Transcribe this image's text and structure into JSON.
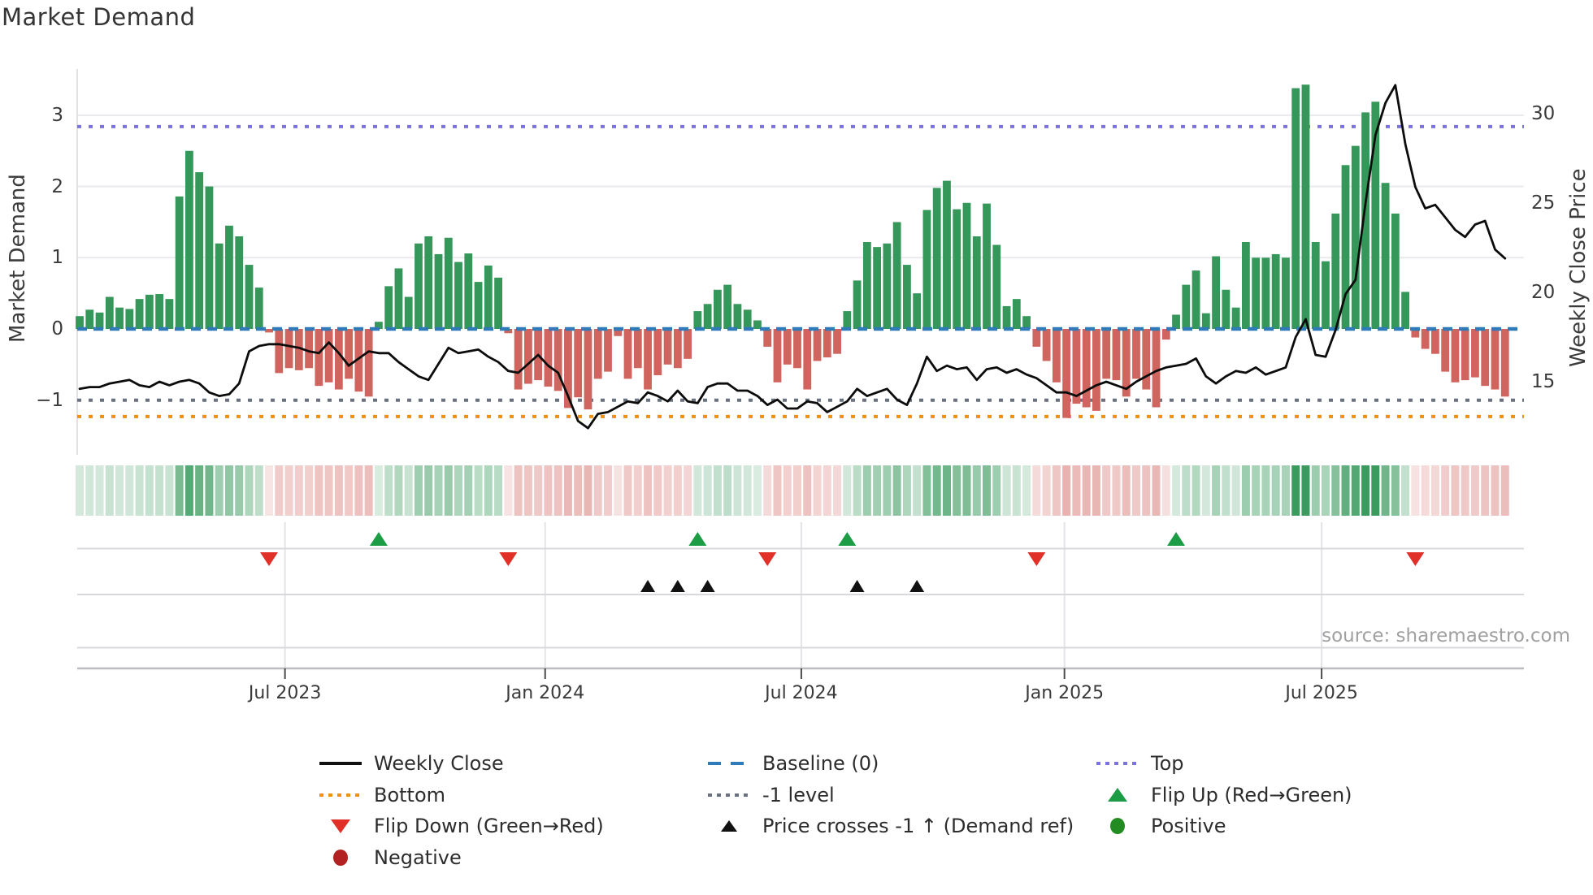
{
  "title": "Market Demand",
  "source": "source: sharemaestro.com",
  "axes": {
    "left_label": "Market Demand",
    "right_label": "Weekly Close Price",
    "left_ticks": [
      "3",
      "2",
      "1",
      "0",
      "−1"
    ],
    "left_tick_values": [
      3,
      2,
      1,
      0,
      -1
    ],
    "right_ticks": [
      "30",
      "25",
      "20",
      "15"
    ],
    "right_tick_values": [
      30,
      25,
      20,
      15
    ],
    "x_ticks": [
      "Jul 2023",
      "Jan 2024",
      "Jul 2024",
      "Jan 2025",
      "Jul 2025"
    ],
    "x_tick_weeks": [
      20.6,
      46.7,
      72.4,
      98.8,
      124.6
    ]
  },
  "colors": {
    "positive_bar": "#35985a",
    "negative_bar": "#cf655e",
    "price_line": "#0c0c0c",
    "baseline": "#2f7ab8",
    "top_line": "#7b72dc",
    "minus1_line": "#6a7280",
    "bottom_line": "#f0920f",
    "flip_up": "#1b9c45",
    "flip_down": "#e03028",
    "price_cross": "#111111",
    "positive_dot": "#228b22",
    "negative_dot": "#b22222",
    "heat_green": "53,152,90",
    "heat_red": "207,101,95"
  },
  "chart_data": {
    "type": "bar+line",
    "title": "Market Demand",
    "x_unit": "weekly (Feb 2023 – Nov 2025)",
    "xlabel_ticks": [
      "Jul 2023",
      "Jan 2024",
      "Jul 2024",
      "Jan 2025",
      "Jul 2025"
    ],
    "ylabel_left": "Market Demand",
    "ylabel_right": "Weekly Close Price",
    "ylim_demand": [
      -1.77,
      3.65
    ],
    "ylim_price": [
      10.9,
      32.5
    ],
    "grid": "horizontal at demand 1,2,3; vertical in marker panel at half-year ticks",
    "legend_position": "below chart, 3 columns",
    "reference_lines": {
      "baseline": 0,
      "top": 2.84,
      "minus_one": -1,
      "bottom": -1.23
    },
    "series": [
      {
        "name": "Market Demand (bars)",
        "values": [
          0.18,
          0.27,
          0.23,
          0.45,
          0.3,
          0.28,
          0.42,
          0.48,
          0.49,
          0.42,
          1.86,
          2.5,
          2.2,
          2.0,
          1.2,
          1.45,
          1.3,
          0.9,
          0.58,
          -0.05,
          -0.62,
          -0.55,
          -0.58,
          -0.55,
          -0.8,
          -0.75,
          -0.85,
          -0.7,
          -0.88,
          -0.95,
          0.1,
          0.6,
          0.85,
          0.45,
          1.2,
          1.3,
          1.05,
          1.28,
          0.94,
          1.06,
          0.66,
          0.89,
          0.72,
          -0.06,
          -0.85,
          -0.77,
          -0.72,
          -0.81,
          -0.87,
          -1.11,
          -0.96,
          -1.13,
          -0.7,
          -0.6,
          -0.1,
          -0.7,
          -0.55,
          -0.85,
          -0.65,
          -0.5,
          -0.55,
          -0.42,
          0.25,
          0.35,
          0.55,
          0.62,
          0.35,
          0.27,
          0.12,
          -0.25,
          -0.75,
          -0.5,
          -0.55,
          -0.85,
          -0.45,
          -0.4,
          -0.35,
          0.25,
          0.68,
          1.22,
          1.15,
          1.2,
          1.5,
          0.9,
          0.5,
          1.67,
          1.98,
          2.08,
          1.68,
          1.77,
          1.3,
          1.76,
          1.18,
          0.32,
          0.42,
          0.18,
          -0.25,
          -0.45,
          -0.75,
          -1.25,
          -1.05,
          -1.1,
          -1.15,
          -0.7,
          -0.72,
          -0.95,
          -0.7,
          -0.85,
          -1.1,
          -0.15,
          0.2,
          0.62,
          0.82,
          0.22,
          1.02,
          0.55,
          0.3,
          1.22,
          1.0,
          1.0,
          1.05,
          1.0,
          3.38,
          3.43,
          1.22,
          0.95,
          1.62,
          2.3,
          2.57,
          3.04,
          3.19,
          2.05,
          1.62,
          0.52,
          -0.12,
          -0.28,
          -0.35,
          -0.6,
          -0.75,
          -0.72,
          -0.68,
          -0.8,
          -0.85,
          -0.95
        ]
      },
      {
        "name": "Weekly Close (line, right axis)",
        "values": [
          14.6,
          14.7,
          14.7,
          14.9,
          15.0,
          15.1,
          14.8,
          14.7,
          15.0,
          14.8,
          15.0,
          15.1,
          14.9,
          14.4,
          14.2,
          14.3,
          14.9,
          16.7,
          17.0,
          17.1,
          17.1,
          17.0,
          16.9,
          16.7,
          16.6,
          17.2,
          16.6,
          15.9,
          16.3,
          16.7,
          16.6,
          16.6,
          16.1,
          15.7,
          15.3,
          15.1,
          16.0,
          16.9,
          16.6,
          16.7,
          16.8,
          16.4,
          16.1,
          15.6,
          15.5,
          16.0,
          16.5,
          15.9,
          15.5,
          14.2,
          12.8,
          12.4,
          13.2,
          13.3,
          13.6,
          13.9,
          13.8,
          14.4,
          14.2,
          13.9,
          14.5,
          13.9,
          13.8,
          14.7,
          14.9,
          14.9,
          14.5,
          14.5,
          14.2,
          13.7,
          14.0,
          13.5,
          13.5,
          13.9,
          13.8,
          13.3,
          13.6,
          13.9,
          14.6,
          14.2,
          14.4,
          14.6,
          14.0,
          13.7,
          14.9,
          16.4,
          15.6,
          15.9,
          15.7,
          15.8,
          15.1,
          15.7,
          15.8,
          15.5,
          15.7,
          15.4,
          15.2,
          14.8,
          14.4,
          14.4,
          14.2,
          14.5,
          14.8,
          15.0,
          14.8,
          14.6,
          15.0,
          15.3,
          15.6,
          15.8,
          15.9,
          16.0,
          16.3,
          15.3,
          14.9,
          15.3,
          15.6,
          15.5,
          15.8,
          15.4,
          15.6,
          15.8,
          17.5,
          18.5,
          16.5,
          16.4,
          17.9,
          19.9,
          20.7,
          25.0,
          28.8,
          30.6,
          31.6,
          28.3,
          25.9,
          24.7,
          24.9,
          24.2,
          23.5,
          23.1,
          23.8,
          24.0,
          22.4,
          21.9
        ]
      }
    ],
    "markers": {
      "flip_up_weeks": [
        30,
        62,
        77,
        110
      ],
      "flip_down_weeks": [
        19,
        43,
        69,
        96,
        134
      ],
      "price_cross_weeks": [
        57,
        60,
        63,
        78,
        84
      ]
    },
    "heatmap_strip": "below chart: one cell per week, green/red shade with intensity proportional to |demand|"
  },
  "legend": {
    "items": [
      {
        "swatch": "line-black",
        "label": "Weekly Close"
      },
      {
        "swatch": "dash-blue",
        "label": "Baseline (0)"
      },
      {
        "swatch": "dot-purple",
        "label": "Top"
      },
      {
        "swatch": "dot-orange",
        "label": "Bottom"
      },
      {
        "swatch": "dot-gray",
        "label": "-1 level"
      },
      {
        "swatch": "tri-up-green",
        "label": "Flip Up (Red→Green)"
      },
      {
        "swatch": "tri-down-red",
        "label": "Flip Down (Green→Red)"
      },
      {
        "swatch": "tri-up-black",
        "label": "Price crosses -1 ↑ (Demand ref)"
      },
      {
        "swatch": "circ-green",
        "label": "Positive"
      },
      {
        "swatch": "circ-red",
        "label": "Negative"
      }
    ]
  }
}
